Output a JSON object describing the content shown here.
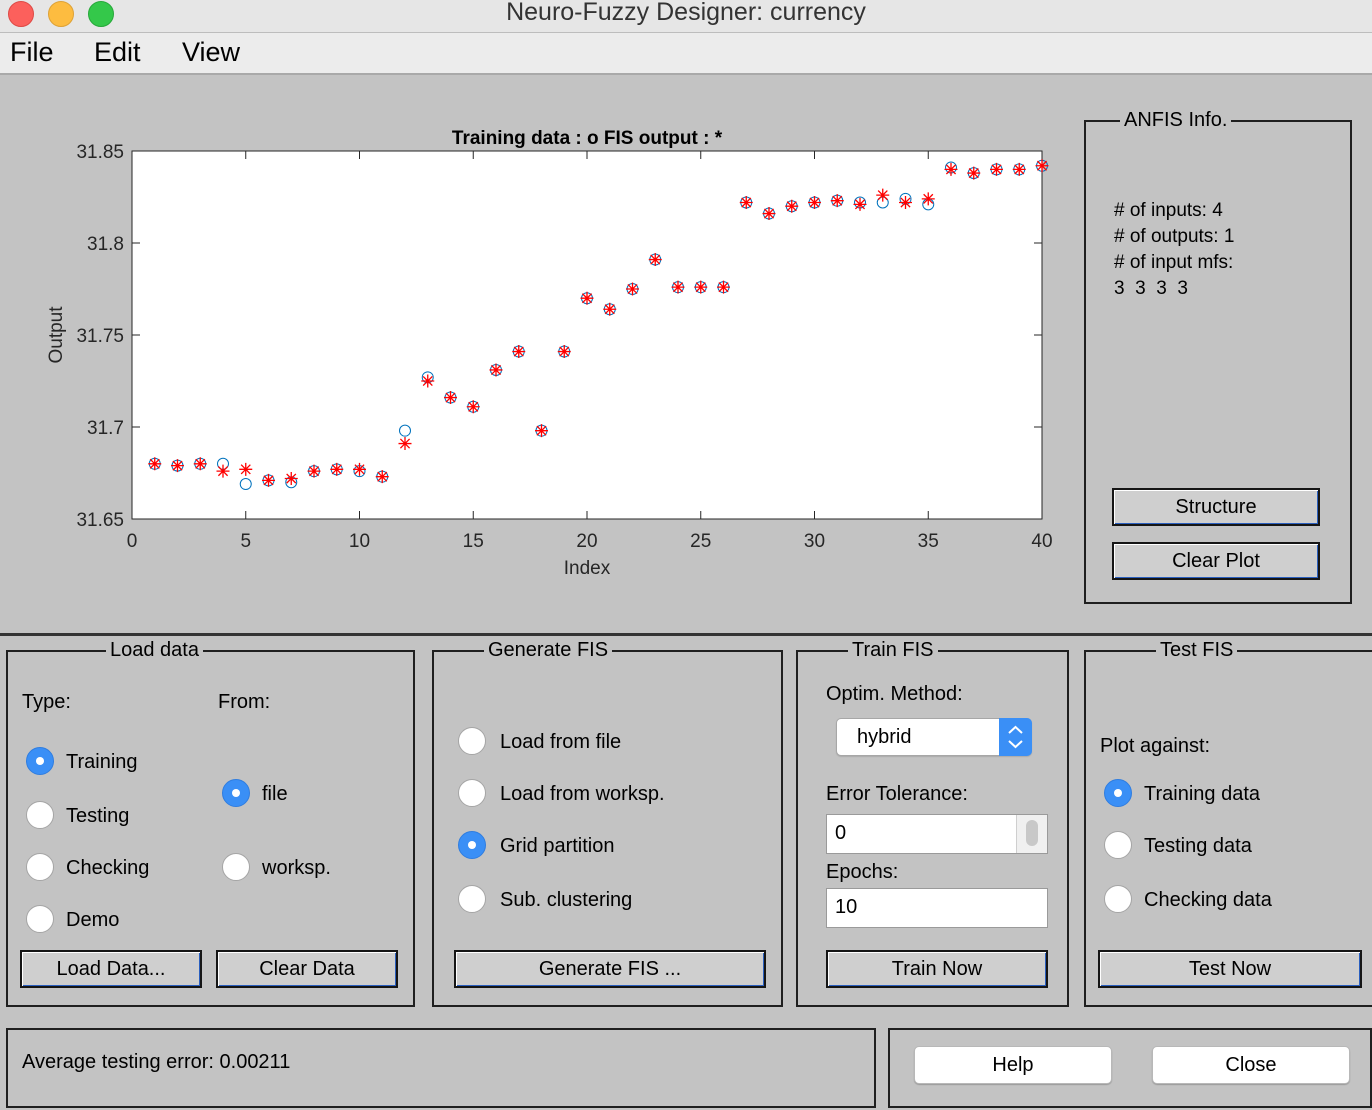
{
  "window": {
    "title": "Neuro-Fuzzy Designer: currency"
  },
  "menu": {
    "file": "File",
    "edit": "Edit",
    "view": "View"
  },
  "chart_data": {
    "type": "scatter",
    "title": "Training data : o   FIS output : *",
    "xlabel": "Index",
    "ylabel": "Output",
    "xlim": [
      0,
      40
    ],
    "ylim": [
      31.65,
      31.85
    ],
    "x_ticks": [
      "0",
      "5",
      "10",
      "15",
      "20",
      "25",
      "30",
      "35",
      "40"
    ],
    "y_ticks": [
      "31.65",
      "31.7",
      "31.75",
      "31.8",
      "31.85"
    ],
    "series": [
      {
        "name": "Training data",
        "marker": "o",
        "color": "#0072bd",
        "x": [
          1,
          2,
          3,
          4,
          5,
          6,
          7,
          8,
          9,
          10,
          11,
          12,
          13,
          14,
          15,
          16,
          17,
          18,
          19,
          20,
          21,
          22,
          23,
          24,
          25,
          26,
          27,
          28,
          29,
          30,
          31,
          32,
          33,
          34,
          35,
          36,
          37,
          38,
          39,
          40
        ],
        "y": [
          31.68,
          31.679,
          31.68,
          31.68,
          31.669,
          31.671,
          31.67,
          31.676,
          31.677,
          31.676,
          31.673,
          31.698,
          31.727,
          31.716,
          31.711,
          31.731,
          31.741,
          31.698,
          31.741,
          31.77,
          31.764,
          31.775,
          31.791,
          31.776,
          31.776,
          31.776,
          31.822,
          31.816,
          31.82,
          31.822,
          31.823,
          31.822,
          31.822,
          31.824,
          31.821,
          31.841,
          31.838,
          31.84,
          31.84,
          31.842
        ]
      },
      {
        "name": "FIS output",
        "marker": "*",
        "color": "#ff0000",
        "x": [
          1,
          2,
          3,
          4,
          5,
          6,
          7,
          8,
          9,
          10,
          11,
          12,
          13,
          14,
          15,
          16,
          17,
          18,
          19,
          20,
          21,
          22,
          23,
          24,
          25,
          26,
          27,
          28,
          29,
          30,
          31,
          32,
          33,
          34,
          35,
          36,
          37,
          38,
          39,
          40
        ],
        "y": [
          31.68,
          31.679,
          31.68,
          31.676,
          31.677,
          31.671,
          31.672,
          31.676,
          31.677,
          31.677,
          31.673,
          31.691,
          31.725,
          31.716,
          31.711,
          31.731,
          31.741,
          31.698,
          31.741,
          31.77,
          31.764,
          31.775,
          31.791,
          31.776,
          31.776,
          31.776,
          31.822,
          31.816,
          31.82,
          31.822,
          31.823,
          31.821,
          31.826,
          31.822,
          31.824,
          31.84,
          31.838,
          31.84,
          31.84,
          31.842
        ]
      }
    ]
  },
  "anfis": {
    "title": "ANFIS Info.",
    "inputs": "# of inputs: 4",
    "outputs": "# of outputs: 1",
    "mfs_label": "# of input mfs:",
    "mfs_values": "3  3  3  3",
    "structure_btn": "Structure",
    "clear_plot_btn": "Clear Plot"
  },
  "load": {
    "title": "Load data",
    "type_label": "Type:",
    "from_label": "From:",
    "training": "Training",
    "testing": "Testing",
    "checking": "Checking",
    "demo": "Demo",
    "file": "file",
    "worksp": "worksp.",
    "load_btn": "Load Data...",
    "clear_btn": "Clear Data"
  },
  "generate": {
    "title": "Generate FIS",
    "load_file": "Load from file",
    "load_worksp": "Load from worksp.",
    "grid": "Grid partition",
    "sub": "Sub. clustering",
    "btn": "Generate FIS ..."
  },
  "train": {
    "title": "Train FIS",
    "optim_label": "Optim. Method:",
    "method": "hybrid",
    "error_label": "Error Tolerance:",
    "error_value": "0",
    "epochs_label": "Epochs:",
    "epochs_value": "10",
    "btn": "Train Now"
  },
  "test": {
    "title": "Test FIS",
    "plot_against": "Plot against:",
    "training": "Training data",
    "testing": "Testing data",
    "checking": "Checking data",
    "btn": "Test Now"
  },
  "status": {
    "text": "Average testing error: 0.00211"
  },
  "footer": {
    "help": "Help",
    "close": "Close"
  }
}
